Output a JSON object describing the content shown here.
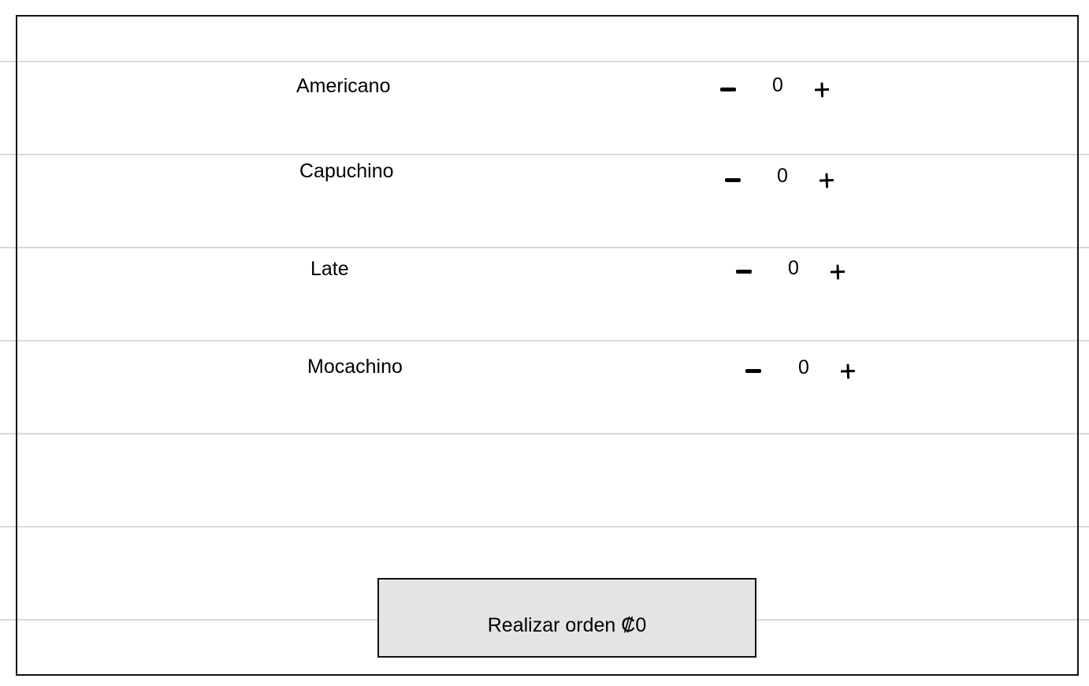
{
  "items": [
    {
      "name": "Americano",
      "quantity": "0",
      "minus_icon": "minus-icon",
      "plus_icon": "plus-icon"
    },
    {
      "name": "Capuchino",
      "quantity": "0",
      "minus_icon": "minus-icon",
      "plus_icon": "plus-icon"
    },
    {
      "name": "Late",
      "quantity": "0",
      "minus_icon": "minus-icon",
      "plus_icon": "plus-icon"
    },
    {
      "name": "Mocachino",
      "quantity": "0",
      "minus_icon": "minus-icon",
      "plus_icon": "plus-icon"
    }
  ],
  "order_button": {
    "label": "Realizar orden ₡0"
  },
  "colors": {
    "background": "#ffffff",
    "rule_lines": "#d9d9d9",
    "border": "#111111",
    "button_fill": "#e4e4e4"
  }
}
